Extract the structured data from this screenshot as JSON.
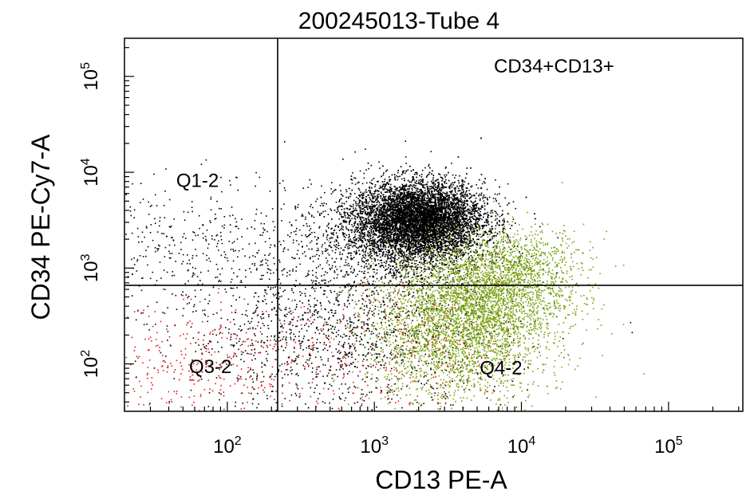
{
  "chart_data": {
    "type": "scatter",
    "title": "200245013-Tube 4",
    "xlabel": "CD13 PE-A",
    "ylabel": "CD34 PE-Cy7-A",
    "x_scale": "log",
    "y_scale": "log",
    "x_ticks": [
      {
        "value": 100,
        "base": "10",
        "exp": "2"
      },
      {
        "value": 1000,
        "base": "10",
        "exp": "3"
      },
      {
        "value": 10000,
        "base": "10",
        "exp": "4"
      },
      {
        "value": 100000,
        "base": "10",
        "exp": "5"
      }
    ],
    "y_ticks": [
      {
        "value": 100,
        "base": "10",
        "exp": "2"
      },
      {
        "value": 1000,
        "base": "10",
        "exp": "3"
      },
      {
        "value": 10000,
        "base": "10",
        "exp": "4"
      },
      {
        "value": 100000,
        "base": "10",
        "exp": "5"
      }
    ],
    "xlim": [
      20,
      320000
    ],
    "ylim": [
      32,
      250000
    ],
    "gate_x": 220,
    "gate_y": 660,
    "quadrants": [
      {
        "label": "Q1-2",
        "x": 45,
        "y": 7000
      },
      {
        "label": "CD34+CD13+",
        "x": 6500,
        "y": 110000
      },
      {
        "label": "Q3-2",
        "x": 55,
        "y": 80
      },
      {
        "label": "Q4-2",
        "x": 5200,
        "y": 78
      }
    ],
    "series": [
      {
        "color": "#000000",
        "centers": [
          {
            "x": 2000,
            "y": 3200,
            "sx": 0.22,
            "sy": 0.2,
            "n": 9000
          },
          {
            "x": 1200,
            "y": 1800,
            "sx": 0.35,
            "sy": 0.3,
            "n": 1200
          },
          {
            "x": 60,
            "y": 1500,
            "sx": 0.4,
            "sy": 0.35,
            "n": 400
          },
          {
            "x": 600,
            "y": 200,
            "sx": 0.55,
            "sy": 0.4,
            "n": 1400
          }
        ]
      },
      {
        "color": "#7aa010",
        "centers": [
          {
            "x": 5000,
            "y": 500,
            "sx": 0.3,
            "sy": 0.28,
            "n": 2600
          },
          {
            "x": 3500,
            "y": 150,
            "sx": 0.3,
            "sy": 0.3,
            "n": 1600
          },
          {
            "x": 9000,
            "y": 1100,
            "sx": 0.25,
            "sy": 0.2,
            "n": 700
          }
        ]
      },
      {
        "color": "#e01818",
        "centers": [
          {
            "x": 80,
            "y": 90,
            "sx": 0.45,
            "sy": 0.35,
            "n": 400
          },
          {
            "x": 1500,
            "y": 150,
            "sx": 0.45,
            "sy": 0.4,
            "n": 250
          }
        ]
      }
    ]
  }
}
